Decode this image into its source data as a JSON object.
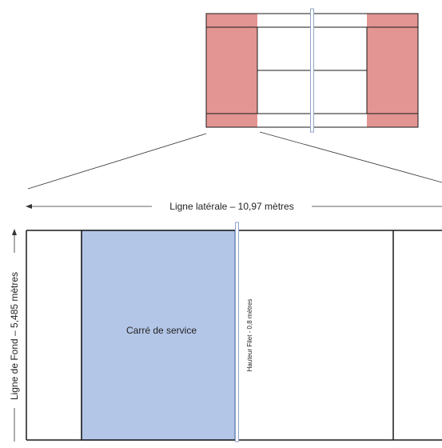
{
  "diagram": {
    "labels": {
      "sideline": "Ligne latérale – 10,97 mètres",
      "baseline": "Ligne de Fond – 5,485 mètres",
      "service_box": "Carré de service",
      "net_height": "Hauteur Filet - 0,8 mètres"
    },
    "colors": {
      "court_line": "#1a1a1a",
      "overview_outer_fill": "#e29593",
      "service_box_fill": "#b4c6e7",
      "service_box_border": "#6d87b8",
      "net_stroke": "#8fa3c8",
      "background": "#ffffff"
    }
  }
}
